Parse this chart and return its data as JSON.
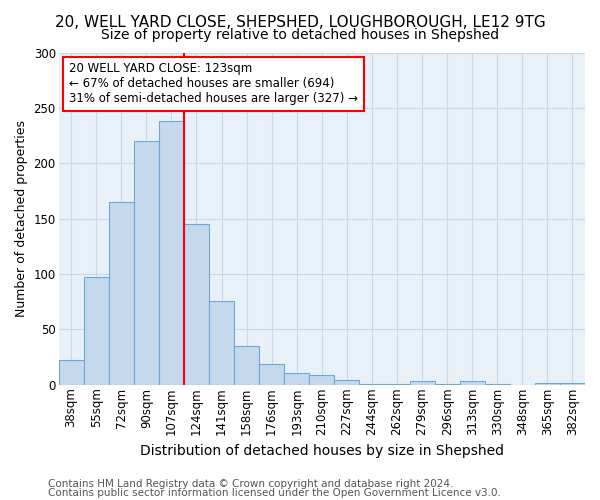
{
  "title1": "20, WELL YARD CLOSE, SHEPSHED, LOUGHBOROUGH, LE12 9TG",
  "title2": "Size of property relative to detached houses in Shepshed",
  "xlabel": "Distribution of detached houses by size in Shepshed",
  "ylabel": "Number of detached properties",
  "bar_labels": [
    "38sqm",
    "55sqm",
    "72sqm",
    "90sqm",
    "107sqm",
    "124sqm",
    "141sqm",
    "158sqm",
    "176sqm",
    "193sqm",
    "210sqm",
    "227sqm",
    "244sqm",
    "262sqm",
    "279sqm",
    "296sqm",
    "313sqm",
    "330sqm",
    "348sqm",
    "365sqm",
    "382sqm"
  ],
  "bar_values": [
    22,
    97,
    165,
    220,
    238,
    145,
    76,
    35,
    19,
    11,
    9,
    4,
    1,
    1,
    3,
    1,
    3,
    1,
    0,
    2,
    2
  ],
  "bar_color": "#c5d8ee",
  "bar_edge_color": "#6aaad4",
  "property_line_label": "20 WELL YARD CLOSE: 123sqm",
  "annotation_line1": "← 67% of detached houses are smaller (694)",
  "annotation_line2": "31% of semi-detached houses are larger (327) →",
  "annotation_box_color": "white",
  "annotation_box_edge": "red",
  "vline_color": "red",
  "grid_color": "#c8d8e8",
  "background_color": "#e8f0f8",
  "ylim": [
    0,
    300
  ],
  "yticks": [
    0,
    50,
    100,
    150,
    200,
    250,
    300
  ],
  "footer1": "Contains HM Land Registry data © Crown copyright and database right 2024.",
  "footer2": "Contains public sector information licensed under the Open Government Licence v3.0.",
  "title1_fontsize": 11,
  "title2_fontsize": 10,
  "xlabel_fontsize": 10,
  "ylabel_fontsize": 9,
  "tick_fontsize": 8.5,
  "annotation_fontsize": 8.5,
  "footer_fontsize": 7.5
}
